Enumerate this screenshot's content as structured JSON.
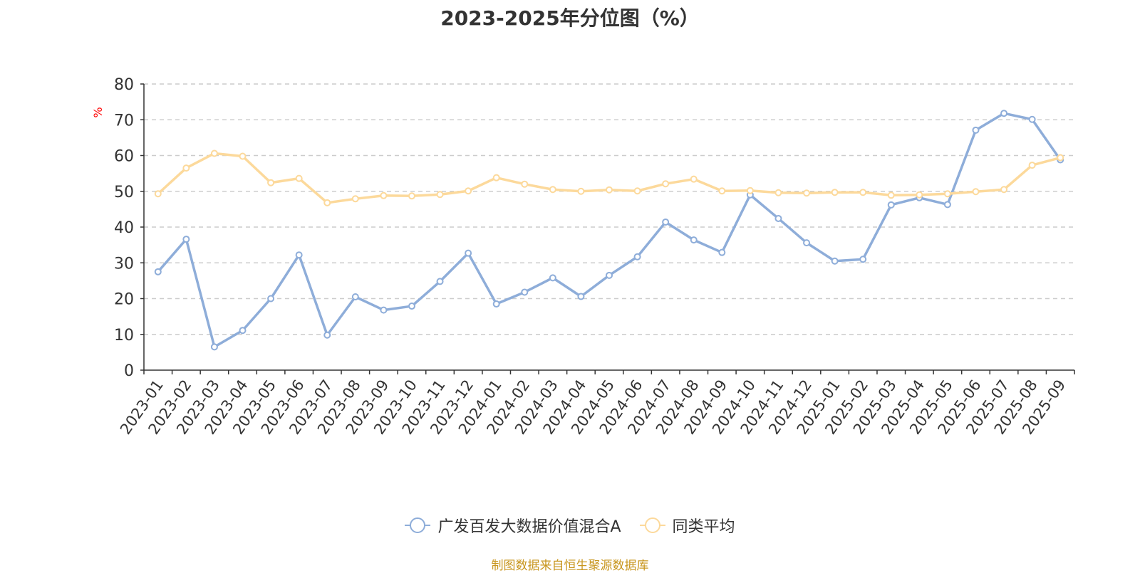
{
  "title": "2023-2025年分位图（%）",
  "source_text": "制图数据来自恒生聚源数据库",
  "colors": {
    "series_a": "#8eadd9",
    "series_b": "#fcd99b",
    "unit": "#ff0000",
    "source": "#c8961e",
    "grid": "#cccccc",
    "axis": "#333333"
  },
  "chart_data": {
    "type": "line",
    "title": "2023-2025年分位图（%）",
    "ylabel": "%",
    "ylim": [
      0,
      80
    ],
    "yticks": [
      0,
      10,
      20,
      30,
      40,
      50,
      60,
      70,
      80
    ],
    "grid": true,
    "grid_style": "dashed",
    "legend_position": "bottom",
    "x": [
      "2023-01",
      "2023-02",
      "2023-03",
      "2023-04",
      "2023-05",
      "2023-06",
      "2023-07",
      "2023-08",
      "2023-09",
      "2023-10",
      "2023-11",
      "2023-12",
      "2024-01",
      "2024-02",
      "2024-03",
      "2024-04",
      "2024-05",
      "2024-06",
      "2024-07",
      "2024-08",
      "2024-09",
      "2024-10",
      "2024-11",
      "2024-12",
      "2025-01",
      "2025-02",
      "2025-03",
      "2025-04",
      "2025-05",
      "2025-06",
      "2025-07",
      "2025-08",
      "2025-09"
    ],
    "series": [
      {
        "name": "广发百发大数据价值混合A",
        "color": "#8eadd9",
        "values": [
          27.5,
          36.6,
          6.5,
          11.1,
          20.0,
          32.2,
          9.8,
          20.5,
          16.8,
          17.9,
          24.8,
          32.7,
          18.5,
          21.8,
          25.8,
          20.6,
          26.5,
          31.7,
          41.4,
          36.4,
          32.9,
          49.0,
          42.4,
          35.6,
          30.5,
          31.0,
          46.2,
          48.2,
          46.3,
          67.1,
          71.8,
          70.1,
          58.8
        ]
      },
      {
        "name": "同类平均",
        "color": "#fcd99b",
        "values": [
          49.3,
          56.5,
          60.6,
          59.8,
          52.4,
          53.6,
          46.8,
          47.9,
          48.8,
          48.7,
          49.1,
          50.1,
          53.8,
          52.0,
          50.5,
          50.0,
          50.4,
          50.1,
          52.1,
          53.4,
          50.1,
          50.2,
          49.6,
          49.5,
          49.7,
          49.7,
          48.9,
          49.0,
          49.3,
          49.9,
          50.5,
          57.3,
          59.4
        ]
      }
    ]
  }
}
